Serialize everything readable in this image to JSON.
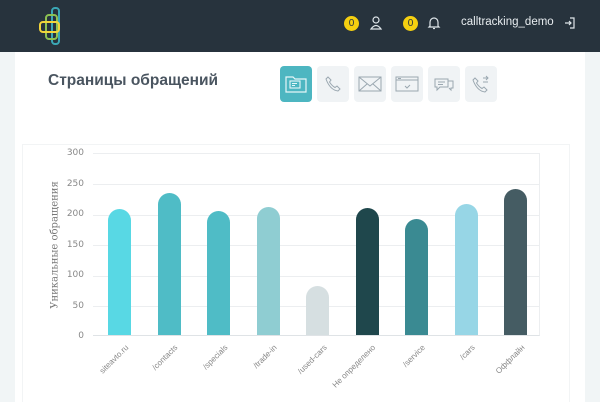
{
  "header": {
    "user_badge_count": "0",
    "notifications_badge_count": "0",
    "username": "calltracking_demo",
    "icons": [
      "logo-icon",
      "users-icon",
      "bell-icon",
      "logout-icon"
    ]
  },
  "page": {
    "title": "Страницы обращений"
  },
  "tabs": [
    {
      "name": "pages",
      "icon": "folder-icon",
      "active": true
    },
    {
      "name": "calls",
      "icon": "phone-icon",
      "active": false
    },
    {
      "name": "emails",
      "icon": "envelope-icon",
      "active": false
    },
    {
      "name": "forms",
      "icon": "form-window-icon",
      "active": false
    },
    {
      "name": "chats",
      "icon": "chat-icon",
      "active": false
    },
    {
      "name": "callbacks",
      "icon": "callback-phone-icon",
      "active": false
    }
  ],
  "colors": {
    "topbar": "#27333d",
    "badge": "#f5d010",
    "accent": "#4db6c1"
  },
  "chart_data": {
    "type": "bar",
    "title": "",
    "xlabel": "",
    "ylabel": "Уникальные обращения",
    "ylim": [
      0,
      300
    ],
    "yticks": [
      0,
      50,
      100,
      150,
      200,
      250,
      300
    ],
    "grid": true,
    "categories": [
      "siteavto.ru",
      "/contacts",
      "/specials",
      "/trade-in",
      "/used-cars",
      "Не определено",
      "/service",
      "/cars",
      "Оффлайн"
    ],
    "values": [
      207,
      233,
      203,
      210,
      80,
      208,
      190,
      215,
      240
    ],
    "colors": [
      "#58d8e4",
      "#4fbcc6",
      "#4fbcc6",
      "#8fcdd2",
      "#d6dfe1",
      "#1f474c",
      "#3a8a92",
      "#97d6e6",
      "#455c63"
    ]
  }
}
